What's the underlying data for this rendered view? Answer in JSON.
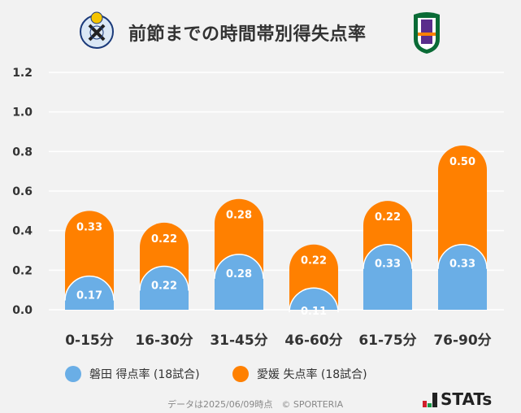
{
  "chart_data": {
    "type": "bar",
    "stacked": true,
    "title": "前節までの時間帯別得失点率",
    "categories": [
      "0-15分",
      "16-30分",
      "31-45分",
      "46-60分",
      "61-75分",
      "76-90分"
    ],
    "series": [
      {
        "name": "磐田 得点率 (18試合)",
        "color": "#6aaee6",
        "values": [
          0.17,
          0.22,
          0.28,
          0.11,
          0.33,
          0.33
        ]
      },
      {
        "name": "愛媛 失点率 (18試合)",
        "color": "#ff8000",
        "values": [
          0.33,
          0.22,
          0.28,
          0.22,
          0.22,
          0.5
        ]
      }
    ],
    "yticks": [
      "0.0",
      "0.2",
      "0.4",
      "0.6",
      "0.8",
      "1.0",
      "1.2"
    ],
    "ylim": [
      0,
      1.2
    ],
    "grid": true,
    "legend": "bottom"
  },
  "footer": "データは2025/06/09時点　© SPORTERIA",
  "brand": "STATs",
  "logos": {
    "home": "Jubilo Iwata crest",
    "away": "Ehime FC crest"
  }
}
